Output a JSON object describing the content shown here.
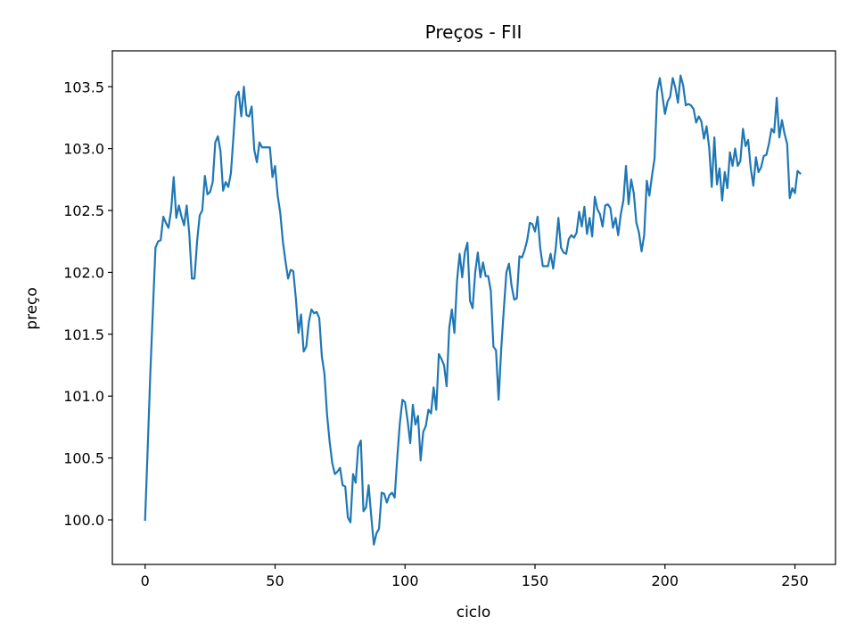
{
  "chart_data": {
    "type": "line",
    "title": "Preços - FII",
    "xlabel": "ciclo",
    "ylabel": "preço",
    "xlim": [
      -12.6,
      265.6
    ],
    "ylim": [
      99.64,
      103.79
    ],
    "xticks": [
      0,
      50,
      100,
      150,
      200,
      250
    ],
    "yticks": [
      100.0,
      100.5,
      101.0,
      101.5,
      102.0,
      102.5,
      103.0,
      103.5
    ],
    "ytick_labels": [
      "100.0",
      "100.5",
      "101.0",
      "101.5",
      "102.0",
      "102.5",
      "103.0",
      "103.5"
    ],
    "grid": false,
    "legend": "none",
    "series": [
      {
        "color": "#1f77b4",
        "values": [
          100.0,
          100.58,
          101.18,
          101.7,
          102.2,
          102.25,
          102.26,
          102.45,
          102.4,
          102.36,
          102.5,
          102.77,
          102.44,
          102.54,
          102.45,
          102.38,
          102.54,
          102.31,
          101.95,
          101.95,
          102.25,
          102.46,
          102.5,
          102.78,
          102.63,
          102.65,
          102.73,
          103.05,
          103.1,
          102.98,
          102.66,
          102.73,
          102.69,
          102.8,
          103.1,
          103.42,
          103.46,
          103.26,
          103.5,
          103.27,
          103.26,
          103.34,
          102.99,
          102.89,
          103.05,
          103.01,
          103.01,
          103.01,
          103.01,
          102.77,
          102.86,
          102.62,
          102.48,
          102.25,
          102.09,
          101.95,
          102.02,
          102.01,
          101.79,
          101.51,
          101.66,
          101.36,
          101.4,
          101.6,
          101.7,
          101.67,
          101.68,
          101.63,
          101.32,
          101.18,
          100.85,
          100.63,
          100.46,
          100.37,
          100.39,
          100.42,
          100.28,
          100.27,
          100.02,
          99.98,
          100.37,
          100.3,
          100.59,
          100.64,
          100.07,
          100.1,
          100.28,
          100.03,
          99.8,
          99.89,
          99.93,
          100.22,
          100.21,
          100.14,
          100.2,
          100.22,
          100.18,
          100.5,
          100.78,
          100.97,
          100.95,
          100.8,
          100.62,
          100.93,
          100.77,
          100.84,
          100.48,
          100.71,
          100.76,
          100.89,
          100.86,
          101.07,
          100.89,
          101.34,
          101.3,
          101.25,
          101.08,
          101.55,
          101.7,
          101.51,
          101.93,
          102.15,
          101.96,
          102.16,
          102.24,
          101.77,
          101.71,
          102.0,
          102.16,
          101.96,
          102.08,
          101.97,
          101.97,
          101.85,
          101.4,
          101.37,
          100.97,
          101.38,
          101.7,
          102.0,
          102.07,
          101.89,
          101.78,
          101.79,
          102.13,
          102.12,
          102.18,
          102.26,
          102.4,
          102.39,
          102.33,
          102.45,
          102.2,
          102.05,
          102.05,
          102.05,
          102.15,
          102.03,
          102.2,
          102.44,
          102.2,
          102.16,
          102.15,
          102.27,
          102.3,
          102.28,
          102.32,
          102.49,
          102.37,
          102.53,
          102.31,
          102.44,
          102.29,
          102.61,
          102.51,
          102.47,
          102.37,
          102.54,
          102.55,
          102.52,
          102.36,
          102.44,
          102.3,
          102.47,
          102.58,
          102.86,
          102.55,
          102.75,
          102.64,
          102.4,
          102.32,
          102.17,
          102.3,
          102.74,
          102.62,
          102.78,
          102.92,
          103.46,
          103.57,
          103.43,
          103.28,
          103.38,
          103.42,
          103.57,
          103.49,
          103.37,
          103.59,
          103.51,
          103.35,
          103.36,
          103.35,
          103.32,
          103.21,
          103.26,
          103.22,
          103.08,
          103.18,
          103.01,
          102.69,
          103.09,
          102.71,
          102.84,
          102.58,
          102.81,
          102.68,
          102.97,
          102.86,
          103.0,
          102.86,
          102.9,
          103.16,
          103.02,
          103.07,
          102.84,
          102.7,
          102.93,
          102.81,
          102.85,
          102.94,
          102.95,
          103.04,
          103.16,
          103.13,
          103.41,
          103.09,
          103.23,
          103.12,
          103.04,
          102.6,
          102.68,
          102.64,
          102.82,
          102.8
        ]
      }
    ]
  }
}
